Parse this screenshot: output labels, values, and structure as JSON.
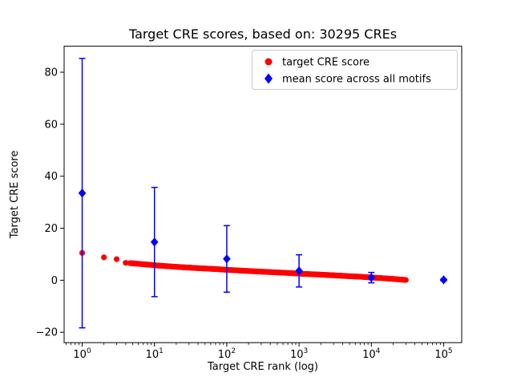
{
  "chart_data": {
    "type": "scatter",
    "title": "Target CRE scores, based on: 30295 CREs",
    "xlabel": "Target CRE rank (log)",
    "ylabel": "Target CRE score",
    "xscale": "log",
    "xlim_log10": [
      -0.25,
      5.25
    ],
    "ylim": [
      -24,
      90
    ],
    "xticks_exponents": [
      0,
      1,
      2,
      3,
      4,
      5
    ],
    "yticks": [
      -20,
      0,
      20,
      40,
      60,
      80
    ],
    "grid": false,
    "legend_position": "upper right",
    "series": [
      {
        "name": "target CRE score",
        "marker": "circle",
        "color": "#ff0000",
        "style": "dense scatter of 30295 ranked scores; decreasing curve, sampled anchor points [rank, score]",
        "points": [
          [
            1,
            10.5
          ],
          [
            2,
            8.8
          ],
          [
            3,
            8.1
          ],
          [
            4,
            6.7
          ],
          [
            5,
            6.5
          ],
          [
            6,
            6.3
          ],
          [
            7,
            6.15
          ],
          [
            8,
            6.0
          ],
          [
            9,
            5.9
          ],
          [
            10,
            5.75
          ],
          [
            15,
            5.4
          ],
          [
            20,
            5.15
          ],
          [
            30,
            4.85
          ],
          [
            50,
            4.5
          ],
          [
            70,
            4.3
          ],
          [
            100,
            4.0
          ],
          [
            150,
            3.75
          ],
          [
            200,
            3.55
          ],
          [
            300,
            3.3
          ],
          [
            500,
            3.0
          ],
          [
            700,
            2.8
          ],
          [
            1000,
            2.55
          ],
          [
            1500,
            2.3
          ],
          [
            2000,
            2.15
          ],
          [
            3000,
            1.9
          ],
          [
            5000,
            1.55
          ],
          [
            7000,
            1.35
          ],
          [
            10000,
            1.05
          ],
          [
            15000,
            0.75
          ],
          [
            20000,
            0.5
          ],
          [
            30000,
            0.1
          ]
        ]
      },
      {
        "name": "mean score across all motifs",
        "marker": "diamond",
        "color": "#0000ff",
        "x": [
          1,
          10,
          100,
          1000,
          10000,
          100000
        ],
        "y": [
          33.5,
          14.7,
          8.2,
          3.6,
          1.0,
          0.15
        ],
        "yerr": [
          51.8,
          21.0,
          12.8,
          6.2,
          2.0,
          0.4
        ]
      }
    ]
  }
}
